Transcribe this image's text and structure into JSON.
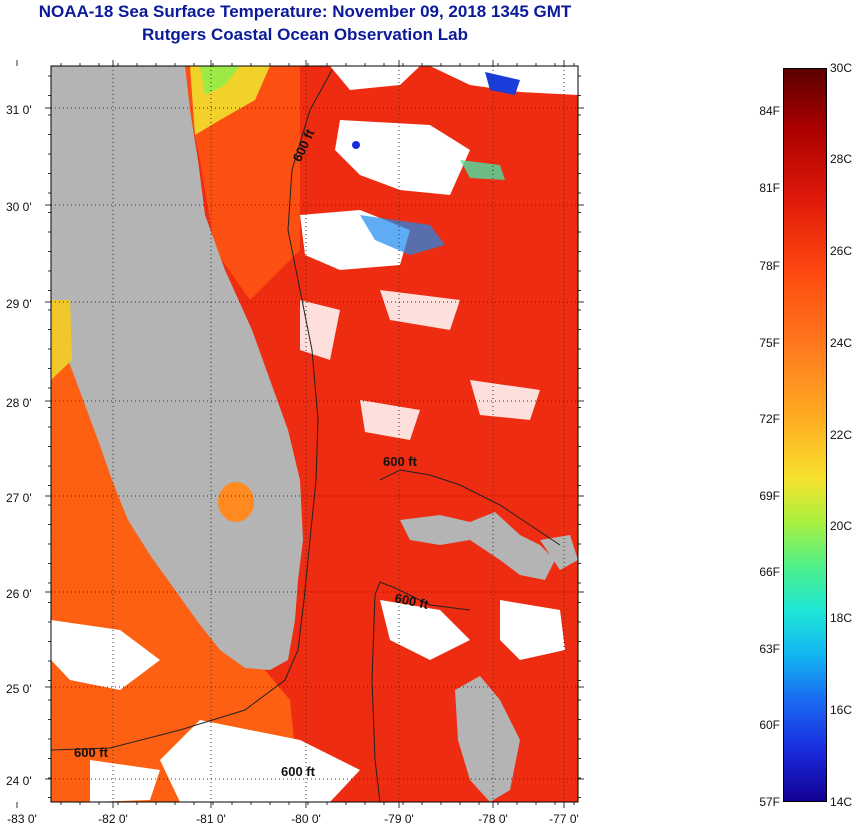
{
  "header": {
    "title": "NOAA-18 Sea Surface Temperature:  November 09, 2018 1345 GMT",
    "subtitle": "Rutgers Coastal Ocean Observation Lab"
  },
  "map": {
    "lat_labels": [
      "31 0'",
      "30 0'",
      "29 0'",
      "28 0'",
      "27 0'",
      "26 0'",
      "25 0'",
      "24 0'"
    ],
    "lon_labels": [
      "-83 0'",
      "-82 0'",
      "-81 0'",
      "-80 0'",
      "-79 0'",
      "-78 0'",
      "-77 0'"
    ],
    "isobath_labels": [
      "600 ft",
      "600 ft",
      "600 ft",
      "600 ft",
      "600 ft"
    ]
  },
  "colorbar": {
    "fahrenheit": [
      "84F",
      "81F",
      "78F",
      "75F",
      "72F",
      "69F",
      "66F",
      "63F",
      "60F",
      "57F"
    ],
    "celsius": [
      "30C",
      "28C",
      "26C",
      "24C",
      "22C",
      "20C",
      "18C",
      "16C",
      "14C"
    ]
  },
  "colors": {
    "land": "#b4b4b4",
    "ocean_warm": "#ee2a10",
    "ocean_mid": "#ff6a12",
    "cloud": "#ffffff",
    "title_blue": "#0a1a9a"
  }
}
